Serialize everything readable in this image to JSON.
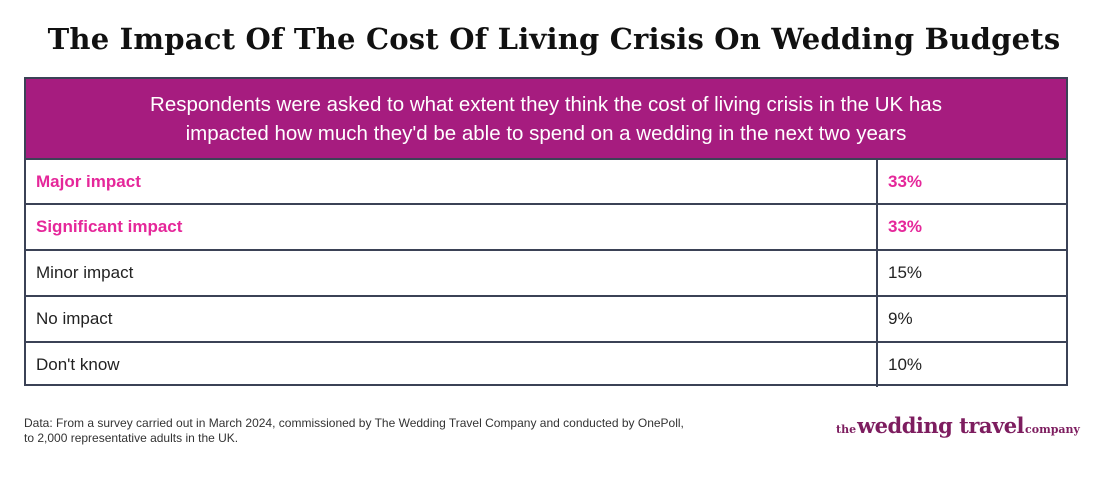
{
  "title": "The Impact Of The Cost Of Living Crisis On Wedding Budgets",
  "colors": {
    "header_bg": "#a61c7f",
    "highlight_text": "#e5279a",
    "border": "#3b4256",
    "logo": "#7d1d5f"
  },
  "chart_data": {
    "type": "table",
    "header": [
      "Respondents were asked to what extent they think the cost of living crisis in the UK has",
      "impacted how much they'd be able to spend on a wedding in the next two years"
    ],
    "rows": [
      {
        "label": "Major impact",
        "value": "33%",
        "highlight": true
      },
      {
        "label": "Significant impact",
        "value": "33%",
        "highlight": true
      },
      {
        "label": "Minor impact",
        "value": "15%",
        "highlight": false
      },
      {
        "label": "No impact",
        "value": "9%",
        "highlight": false
      },
      {
        "label": "Don't know",
        "value": "10%",
        "highlight": false
      }
    ]
  },
  "footnote": [
    "Data: From a survey carried out in March 2024, commissioned by The Wedding Travel Company and conducted by OnePoll,",
    "to 2,000 representative adults in the UK."
  ],
  "logo": {
    "prefix": "the",
    "main": "wedding travel",
    "suffix": "company"
  }
}
